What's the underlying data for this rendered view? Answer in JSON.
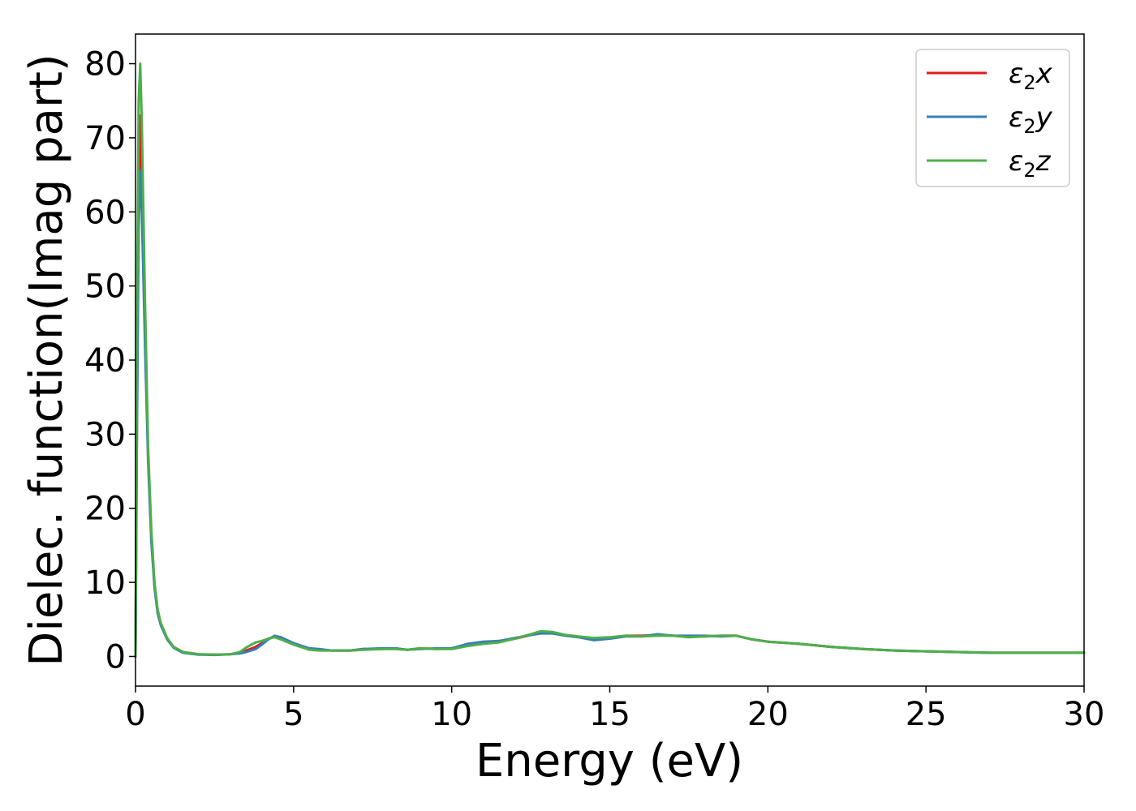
{
  "chart_data": {
    "type": "line",
    "title": "",
    "xlabel": "Energy (eV)",
    "ylabel": "Dielec. function(Imag part)",
    "xlim": [
      0,
      30
    ],
    "ylim": [
      -4,
      84
    ],
    "x_ticks": [
      0,
      5,
      10,
      15,
      20,
      25,
      30
    ],
    "y_ticks": [
      0,
      10,
      20,
      30,
      40,
      50,
      60,
      70,
      80
    ],
    "grid": false,
    "legend_position": "top-right",
    "series": [
      {
        "name": "ε2x",
        "legend_main": "ε",
        "legend_sub": "2",
        "legend_axis": "x",
        "color": "#e41a1c",
        "x": [
          0,
          0.05,
          0.1,
          0.15,
          0.2,
          0.3,
          0.4,
          0.5,
          0.6,
          0.7,
          0.8,
          1.0,
          1.2,
          1.5,
          2.0,
          2.5,
          3.0,
          3.3,
          3.5,
          3.8,
          4.0,
          4.2,
          4.4,
          4.6,
          5.0,
          5.5,
          5.8,
          6.2,
          6.8,
          7.2,
          7.8,
          8.2,
          8.6,
          9.0,
          9.5,
          10.0,
          10.5,
          11.0,
          11.5,
          12.0,
          12.5,
          12.8,
          13.2,
          13.6,
          14.0,
          14.5,
          15.0,
          15.5,
          16.0,
          16.5,
          17.0,
          17.5,
          18.0,
          18.5,
          19.0,
          19.5,
          20.0,
          21.0,
          22.0,
          23.0,
          24.0,
          25.0,
          26.0,
          27.0,
          28.0,
          29.0,
          30.0
        ],
        "values": [
          0,
          35,
          62,
          73,
          65,
          45,
          27,
          16,
          9.5,
          6.0,
          4.3,
          2.4,
          1.3,
          0.6,
          0.3,
          0.25,
          0.3,
          0.5,
          0.8,
          1.3,
          1.8,
          2.4,
          2.7,
          2.4,
          1.7,
          1.0,
          0.9,
          0.8,
          0.8,
          1.0,
          1.0,
          1.1,
          0.9,
          1.1,
          1.0,
          1.1,
          1.6,
          1.9,
          2.0,
          2.4,
          2.9,
          3.2,
          3.2,
          2.9,
          2.7,
          2.4,
          2.5,
          2.8,
          2.8,
          2.9,
          2.8,
          2.7,
          2.7,
          2.8,
          2.8,
          2.3,
          2.0,
          1.7,
          1.3,
          1.0,
          0.8,
          0.7,
          0.6,
          0.5,
          0.5,
          0.5,
          0.5
        ]
      },
      {
        "name": "ε2y",
        "legend_main": "ε",
        "legend_sub": "2",
        "legend_axis": "y",
        "color": "#377eb8",
        "x": [
          0,
          0.05,
          0.1,
          0.15,
          0.2,
          0.3,
          0.4,
          0.5,
          0.6,
          0.7,
          0.8,
          1.0,
          1.2,
          1.5,
          2.0,
          2.5,
          3.0,
          3.3,
          3.5,
          3.8,
          4.0,
          4.2,
          4.4,
          4.6,
          5.0,
          5.5,
          5.8,
          6.2,
          6.8,
          7.2,
          7.8,
          8.2,
          8.6,
          9.0,
          9.5,
          10.0,
          10.5,
          11.0,
          11.5,
          12.0,
          12.5,
          12.8,
          13.2,
          13.6,
          14.0,
          14.5,
          15.0,
          15.5,
          16.0,
          16.5,
          17.0,
          17.5,
          18.0,
          18.5,
          19.0,
          19.5,
          20.0,
          21.0,
          22.0,
          23.0,
          24.0,
          25.0,
          26.0,
          27.0,
          28.0,
          29.0,
          30.0
        ],
        "values": [
          0,
          32,
          58,
          65.5,
          60,
          42,
          26,
          15.5,
          9.3,
          5.8,
          4.2,
          2.3,
          1.2,
          0.5,
          0.25,
          0.2,
          0.3,
          0.4,
          0.6,
          1.0,
          1.6,
          2.3,
          2.8,
          2.6,
          1.8,
          1.1,
          1.0,
          0.8,
          0.8,
          1.0,
          1.1,
          1.1,
          0.9,
          1.0,
          1.1,
          1.1,
          1.7,
          2.0,
          2.1,
          2.5,
          2.9,
          3.1,
          3.1,
          2.8,
          2.6,
          2.2,
          2.4,
          2.7,
          2.7,
          3.0,
          2.8,
          2.8,
          2.8,
          2.7,
          2.8,
          2.3,
          2.0,
          1.7,
          1.3,
          1.0,
          0.8,
          0.7,
          0.6,
          0.5,
          0.5,
          0.5,
          0.5
        ]
      },
      {
        "name": "ε2z",
        "legend_main": "ε",
        "legend_sub": "2",
        "legend_axis": "z",
        "color": "#4daf4a",
        "x": [
          0,
          0.05,
          0.1,
          0.15,
          0.2,
          0.3,
          0.4,
          0.5,
          0.6,
          0.7,
          0.8,
          1.0,
          1.2,
          1.5,
          2.0,
          2.5,
          3.0,
          3.3,
          3.5,
          3.8,
          4.0,
          4.2,
          4.4,
          4.6,
          5.0,
          5.5,
          5.8,
          6.2,
          6.8,
          7.2,
          7.8,
          8.2,
          8.6,
          9.0,
          9.5,
          10.0,
          10.5,
          11.0,
          11.5,
          12.0,
          12.5,
          12.8,
          13.2,
          13.6,
          14.0,
          14.5,
          15.0,
          15.5,
          16.0,
          16.5,
          17.0,
          17.5,
          18.0,
          18.5,
          19.0,
          19.5,
          20.0,
          21.0,
          22.0,
          23.0,
          24.0,
          25.0,
          26.0,
          27.0,
          28.0,
          29.0,
          30.0
        ],
        "values": [
          0,
          45,
          75,
          80,
          72,
          48,
          28,
          17,
          10,
          6.3,
          4.5,
          2.5,
          1.3,
          0.6,
          0.3,
          0.25,
          0.3,
          0.6,
          1.2,
          1.9,
          2.1,
          2.4,
          2.6,
          2.3,
          1.6,
          0.9,
          0.8,
          0.8,
          0.8,
          0.9,
          1.0,
          1.0,
          0.9,
          1.1,
          1.0,
          1.0,
          1.4,
          1.7,
          1.9,
          2.4,
          3.0,
          3.4,
          3.3,
          2.9,
          2.7,
          2.5,
          2.6,
          2.8,
          2.7,
          2.8,
          2.8,
          2.6,
          2.7,
          2.8,
          2.8,
          2.3,
          2.0,
          1.7,
          1.3,
          1.0,
          0.8,
          0.7,
          0.6,
          0.5,
          0.5,
          0.5,
          0.5
        ]
      }
    ]
  }
}
